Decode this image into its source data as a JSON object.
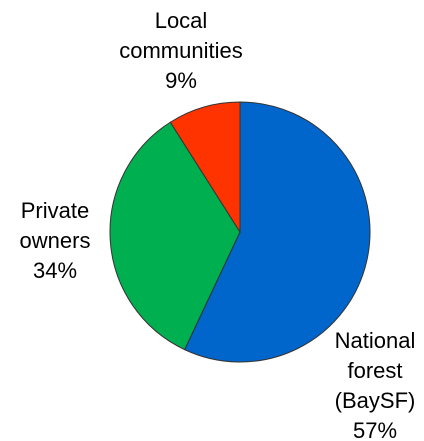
{
  "chart_data": {
    "type": "pie",
    "categories": [
      "National forest (BaySF)",
      "Private owners",
      "Local communities"
    ],
    "values": [
      57,
      34,
      9
    ],
    "value_labels": [
      "57%",
      "34%",
      "9%"
    ],
    "colors": [
      "#0066cc",
      "#00b050",
      "#ff3300"
    ]
  }
}
